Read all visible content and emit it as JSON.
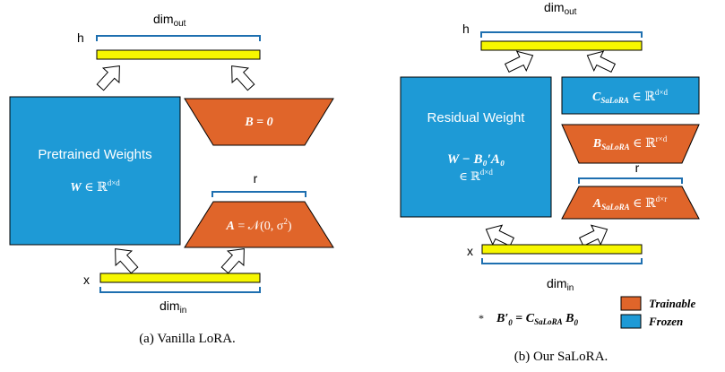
{
  "left": {
    "output_label": "h",
    "output_dim_main": "dim",
    "output_dim_sub": "out",
    "pretrained_title": "Pretrained Weights",
    "pretrained_formula_var": "W",
    "pretrained_formula_rest": " ∈ ℝ",
    "pretrained_formula_sup": "d×d",
    "b_formula": "B = 0",
    "rank_label": "r",
    "a_formula_var": "A",
    "a_formula_rest": " = 𝒩(0, σ",
    "a_formula_sup": "2",
    "a_formula_close": ")",
    "input_label": "x",
    "input_dim_main": "dim",
    "input_dim_sub": "in",
    "caption": "(a) Vanilla LoRA."
  },
  "right": {
    "output_label": "h",
    "output_dim_main": "dim",
    "output_dim_sub": "out",
    "residual_title": "Residual Weight",
    "residual_formula": "W − B₀′A₀",
    "residual_space_main": "∈ ℝ",
    "residual_space_sup": "d×d",
    "c_var": "C",
    "c_sub": "SaLoRA",
    "c_rest": " ∈ ℝ",
    "c_sup": "d×d",
    "b_var": "B",
    "b_sub": "SaLoRA",
    "b_rest": " ∈ ℝ",
    "b_sup": "r×d",
    "rank_label": "r",
    "a_var": "A",
    "a_sub": "SaLoRA",
    "a_rest": " ∈ ℝ",
    "a_sup": "d×r",
    "input_label": "x",
    "input_dim_main": "dim",
    "input_dim_sub": "in",
    "note_star": "*",
    "note_lhs": "B′",
    "note_lhs_sub": "0",
    "note_eq": " = ",
    "note_c": "C",
    "note_c_sub": "SaLoRA",
    "note_b": " B",
    "note_b_sub": "0",
    "caption": "(b) Our SaLoRA."
  },
  "legend": {
    "trainable_label": "Trainable",
    "frozen_label": "Frozen"
  },
  "colors": {
    "blue": "#1E9AD6",
    "orange": "#E0652A",
    "yellow": "#F7F700",
    "bracket": "#1E6FB0"
  }
}
